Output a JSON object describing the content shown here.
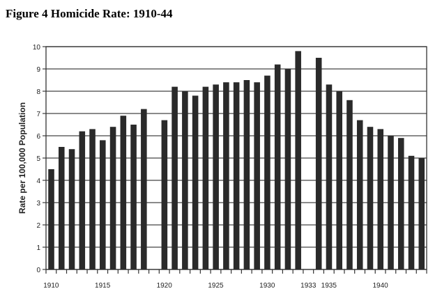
{
  "chart_data": {
    "type": "bar",
    "title": "Figure 4 Homicide Rate: 1910-44",
    "xlabel": "",
    "ylabel": "Rate per 100,000 Population",
    "ylim": [
      0,
      10
    ],
    "yticks": [
      "0",
      "1",
      "2",
      "3",
      "4",
      "5",
      "6",
      "7",
      "8",
      "9",
      "10"
    ],
    "xtick_labels": [
      "1910",
      "1915",
      "1920",
      "1925",
      "1930",
      "1933",
      "1935",
      "1940"
    ],
    "grid": true,
    "categories": [
      "1910",
      "1911",
      "1912",
      "1913",
      "1914",
      "1915",
      "1916",
      "1917",
      "1918",
      "1919",
      "1920",
      "1921",
      "1922",
      "1923",
      "1924",
      "1925",
      "1926",
      "1927",
      "1928",
      "1929",
      "1930",
      "1931",
      "1932",
      "1933",
      "1934",
      "1935",
      "1936",
      "1937",
      "1938",
      "1939",
      "1940",
      "1941",
      "1942",
      "1943",
      "1944"
    ],
    "values": [
      4.5,
      5.5,
      5.4,
      6.2,
      6.3,
      5.8,
      6.4,
      6.9,
      6.5,
      7.2,
      6.7,
      8.2,
      8.0,
      7.8,
      8.2,
      8.3,
      8.4,
      8.4,
      8.5,
      8.4,
      8.7,
      9.2,
      9.0,
      9.8,
      9.5,
      8.3,
      8.0,
      7.6,
      6.7,
      6.4,
      6.3,
      6.0,
      5.9,
      5.1,
      5.0
    ],
    "bar_color": "#2a2a2a"
  }
}
